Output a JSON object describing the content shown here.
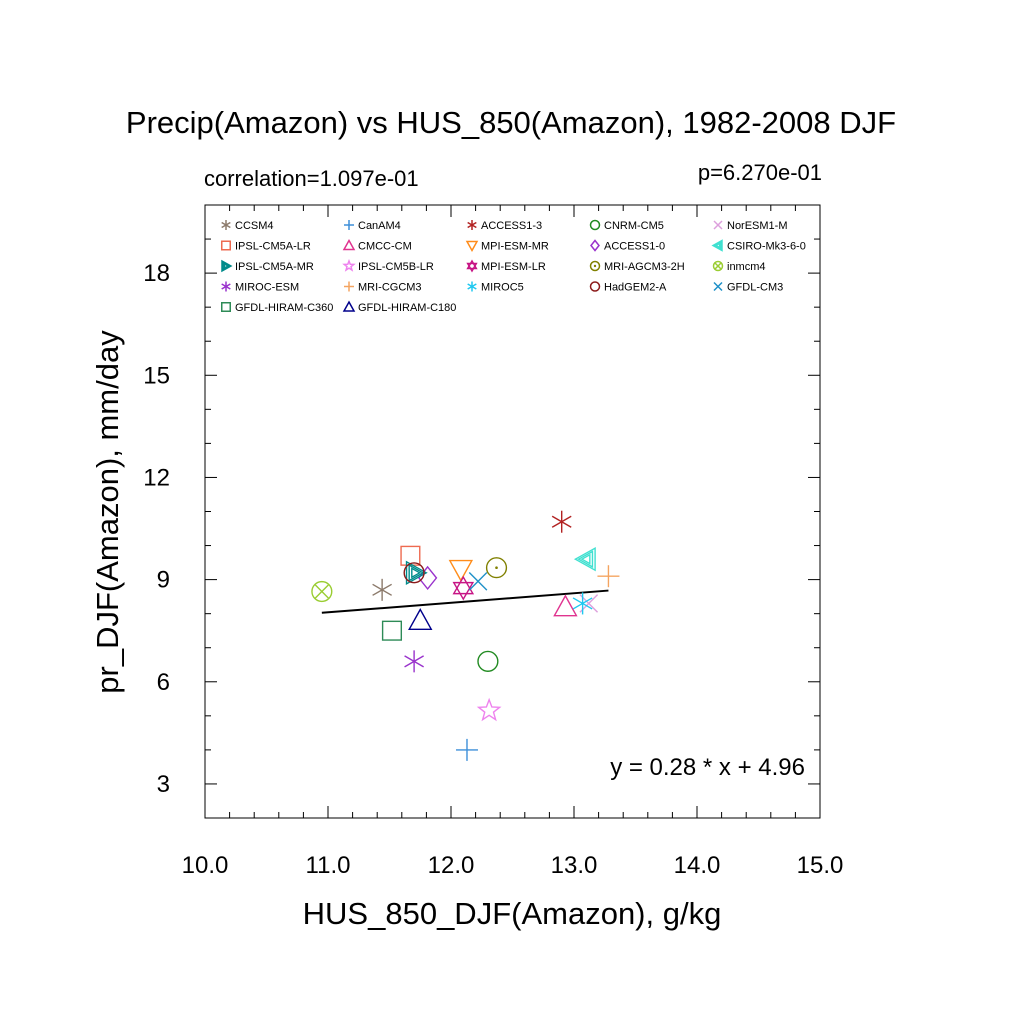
{
  "chart_data": {
    "type": "scatter",
    "title": "Precip(Amazon) vs HUS_850(Amazon), 1982-2008 DJF",
    "subtitle_left": "correlation=1.097e-01",
    "subtitle_right": "p=6.270e-01",
    "xlabel": "HUS_850_DJF(Amazon), g/kg",
    "ylabel": "pr_DJF(Amazon), mm/day",
    "xlim": [
      10.0,
      15.0
    ],
    "ylim": [
      2.0,
      20.0
    ],
    "xticks": [
      10.0,
      11.0,
      12.0,
      13.0,
      14.0,
      15.0
    ],
    "xtick_labels": [
      "10.0",
      "11.0",
      "12.0",
      "13.0",
      "14.0",
      "15.0"
    ],
    "yticks": [
      3,
      6,
      9,
      12,
      15,
      18
    ],
    "ytick_labels": [
      "3",
      "6",
      "9",
      "12",
      "15",
      "18"
    ],
    "regression": {
      "slope": 0.28,
      "intercept": 4.96,
      "x_range": [
        10.95,
        13.28
      ]
    },
    "equation_text": "y =  0.28 * x +  4.96",
    "legend_position": "top",
    "series": [
      {
        "name": "CCSM4",
        "color": "#8c7a6b",
        "marker": "asterisk",
        "x": 11.44,
        "y": 8.7
      },
      {
        "name": "CanAM4",
        "color": "#3d8fd9",
        "marker": "plus",
        "x": 12.13,
        "y": 4.0
      },
      {
        "name": "ACCESS1-3",
        "color": "#b22222",
        "marker": "asterisk",
        "x": 12.9,
        "y": 10.7
      },
      {
        "name": "CNRM-CM5",
        "color": "#228b22",
        "marker": "circle",
        "x": 12.3,
        "y": 6.6
      },
      {
        "name": "NorESM1-M",
        "color": "#dda0dd",
        "marker": "x",
        "x": 13.12,
        "y": 8.3
      },
      {
        "name": "IPSL-CM5A-LR",
        "color": "#ee6a50",
        "marker": "square",
        "x": 11.67,
        "y": 9.7
      },
      {
        "name": "CMCC-CM",
        "color": "#e0338f",
        "marker": "triangle-up",
        "x": 12.93,
        "y": 8.2
      },
      {
        "name": "MPI-ESM-MR",
        "color": "#ff8c1a",
        "marker": "triangle-down",
        "x": 12.08,
        "y": 9.3
      },
      {
        "name": "ACCESS1-0",
        "color": "#9932cc",
        "marker": "diamond",
        "x": 11.81,
        "y": 9.05
      },
      {
        "name": "CSIRO-Mk3-6-0",
        "color": "#40e0d0",
        "marker": "triangle-left",
        "x": 13.1,
        "y": 9.6
      },
      {
        "name": "IPSL-CM5A-MR",
        "color": "#008b8b",
        "marker": "triangle-right",
        "x": 11.71,
        "y": 9.2
      },
      {
        "name": "IPSL-CM5B-LR",
        "color": "#ee82ee",
        "marker": "star",
        "x": 12.31,
        "y": 5.15
      },
      {
        "name": "MPI-ESM-LR",
        "color": "#c71585",
        "marker": "hexagram",
        "x": 12.1,
        "y": 8.75
      },
      {
        "name": "MRI-AGCM3-2H",
        "color": "#808000",
        "marker": "circle-dot",
        "x": 12.37,
        "y": 9.35
      },
      {
        "name": "inmcm4",
        "color": "#9acd32",
        "marker": "circle-x",
        "x": 10.95,
        "y": 8.65
      },
      {
        "name": "MIROC-ESM",
        "color": "#9932cc",
        "marker": "asterisk",
        "x": 11.7,
        "y": 6.6
      },
      {
        "name": "MRI-CGCM3",
        "color": "#f4a460",
        "marker": "plus",
        "x": 13.28,
        "y": 9.1
      },
      {
        "name": "MIROC5",
        "color": "#1ec8f0",
        "marker": "asterisk",
        "x": 13.07,
        "y": 8.3
      },
      {
        "name": "HadGEM2-A",
        "color": "#8b1a1a",
        "marker": "circle",
        "x": 11.7,
        "y": 9.2
      },
      {
        "name": "GFDL-CM3",
        "color": "#1e90c8",
        "marker": "x",
        "x": 12.22,
        "y": 8.95
      },
      {
        "name": "GFDL-HIRAM-C360",
        "color": "#2e8b57",
        "marker": "square",
        "x": 11.52,
        "y": 7.5
      },
      {
        "name": "GFDL-HIRAM-C180",
        "color": "#00008b",
        "marker": "triangle-up",
        "x": 11.75,
        "y": 7.8
      }
    ]
  }
}
